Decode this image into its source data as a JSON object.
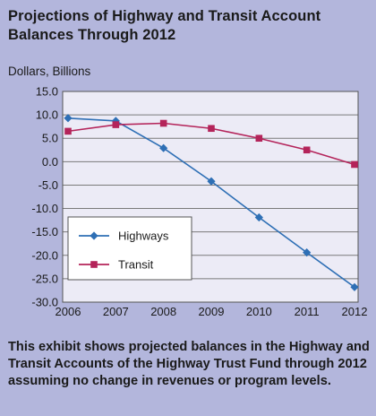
{
  "title": "Projections of Highway and Transit Account Balances Through 2012",
  "caption": "This exhibit shows projected balances in the Highway and Transit Accounts of the Highway Trust Fund through 2012 assuming no change in revenues or program levels.",
  "colors": {
    "background": "#b3b6dc",
    "plot_background": "#ecebf6",
    "highways": "#2e6fb5",
    "transit": "#b4245a"
  },
  "chart_data": {
    "type": "line",
    "ylabel": "Dollars, Billions",
    "x": [
      "2006",
      "2007",
      "2008",
      "2009",
      "2010",
      "2011",
      "2012"
    ],
    "yticks": [
      "15.0",
      "10.0",
      "5.0",
      "0.0",
      "-5.0",
      "-10.0",
      "-15.0",
      "-20.0",
      "-25.0",
      "-30.0"
    ],
    "ylim": [
      -30,
      15
    ],
    "grid": true,
    "legend_position": "lower-left",
    "series": [
      {
        "name": "Highways",
        "values": [
          9.3,
          8.7,
          2.9,
          -4.2,
          -11.9,
          -19.4,
          -26.8
        ]
      },
      {
        "name": "Transit",
        "values": [
          6.5,
          7.9,
          8.2,
          7.1,
          5.0,
          2.5,
          -0.6
        ]
      }
    ]
  }
}
